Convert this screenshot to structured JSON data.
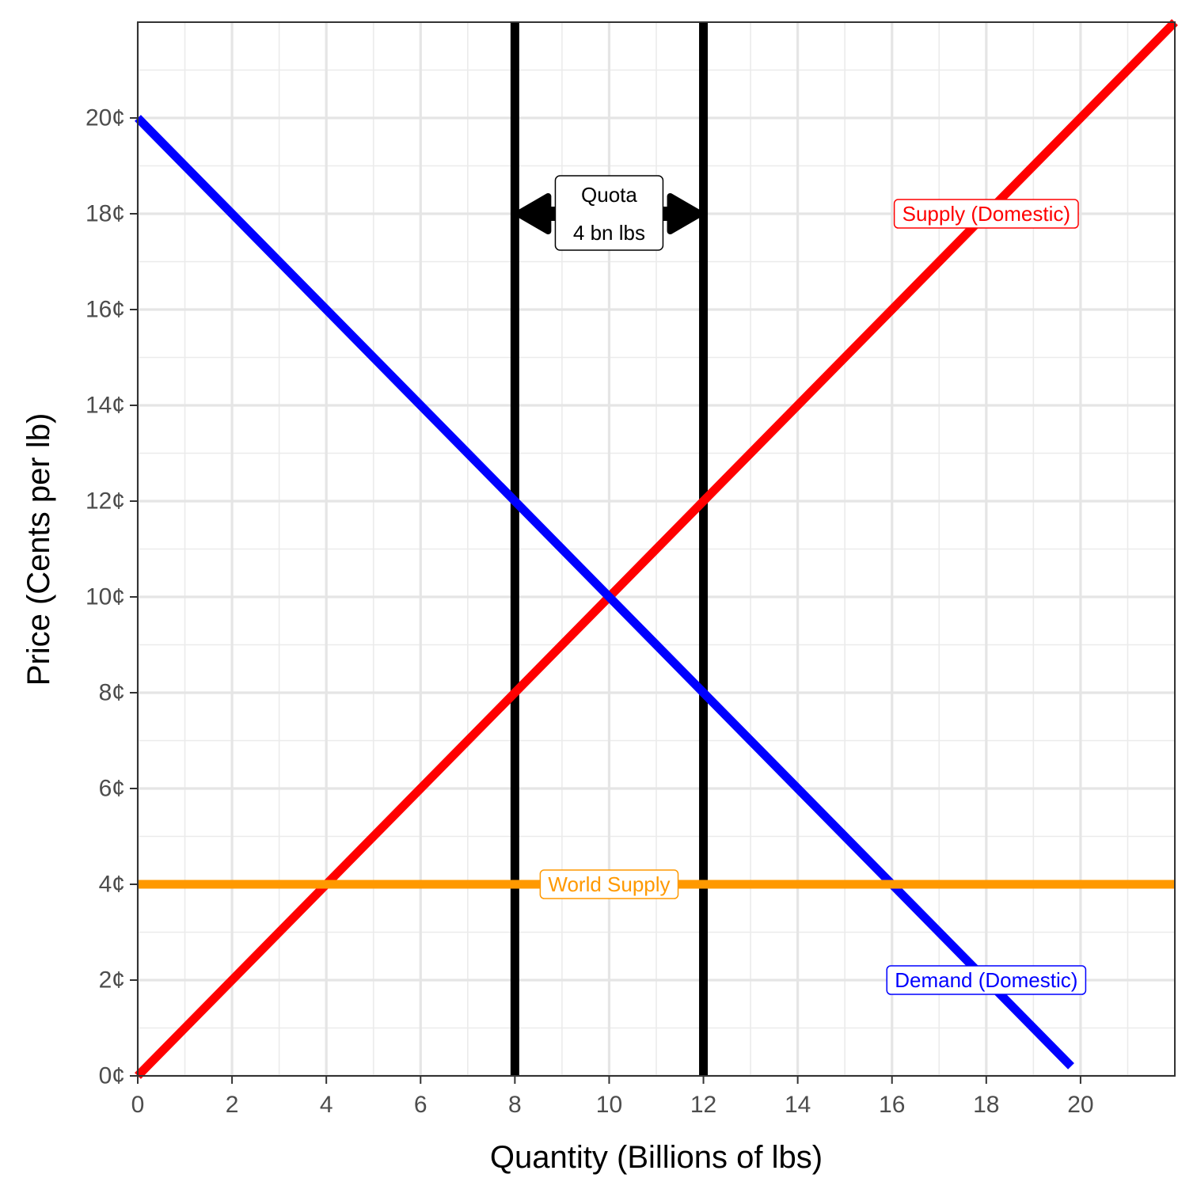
{
  "chart_data": {
    "type": "line",
    "xlabel": "Quantity (Billions of lbs)",
    "ylabel": "Price (Cents per lb)",
    "xlim": [
      0,
      22
    ],
    "ylim": [
      0,
      22
    ],
    "x_ticks": [
      0,
      2,
      4,
      6,
      8,
      10,
      12,
      14,
      16,
      18,
      20
    ],
    "x_tick_labels": [
      "0",
      "2",
      "4",
      "6",
      "8",
      "10",
      "12",
      "14",
      "16",
      "18",
      "20"
    ],
    "y_ticks": [
      0,
      2,
      4,
      6,
      8,
      10,
      12,
      14,
      16,
      18,
      20
    ],
    "y_tick_labels": [
      "0¢",
      "2¢",
      "4¢",
      "6¢",
      "8¢",
      "10¢",
      "12¢",
      "14¢",
      "16¢",
      "18¢",
      "20¢"
    ],
    "grid": true,
    "series": [
      {
        "name": "Supply (Domestic)",
        "color": "#ff0000",
        "x": [
          0,
          22
        ],
        "y": [
          0,
          22
        ]
      },
      {
        "name": "Demand (Domestic)",
        "color": "#0000ff",
        "x": [
          0,
          19.8
        ],
        "y": [
          20,
          0.2
        ]
      },
      {
        "name": "World Supply",
        "color": "#ff9900",
        "x": [
          0,
          22
        ],
        "y": [
          4,
          4
        ]
      }
    ],
    "vertical_lines": [
      {
        "x": 8,
        "color": "#000000"
      },
      {
        "x": 12,
        "color": "#000000"
      }
    ],
    "annotations": [
      {
        "text": "Supply (Domestic)",
        "x": 18,
        "y": 18,
        "color": "#ff0000"
      },
      {
        "text": "Demand (Domestic)",
        "x": 18,
        "y": 2,
        "color": "#0000ff"
      },
      {
        "text": "World Supply",
        "x": 10,
        "y": 4,
        "color": "#ff9900"
      },
      {
        "text": "Quota",
        "x": 10,
        "y": 18.4,
        "color": "#000000"
      },
      {
        "text": "4 bn lbs",
        "x": 10,
        "y": 17.6,
        "color": "#000000"
      }
    ],
    "quota_arrow": {
      "x_start": 8,
      "x_end": 12,
      "y": 18
    }
  }
}
